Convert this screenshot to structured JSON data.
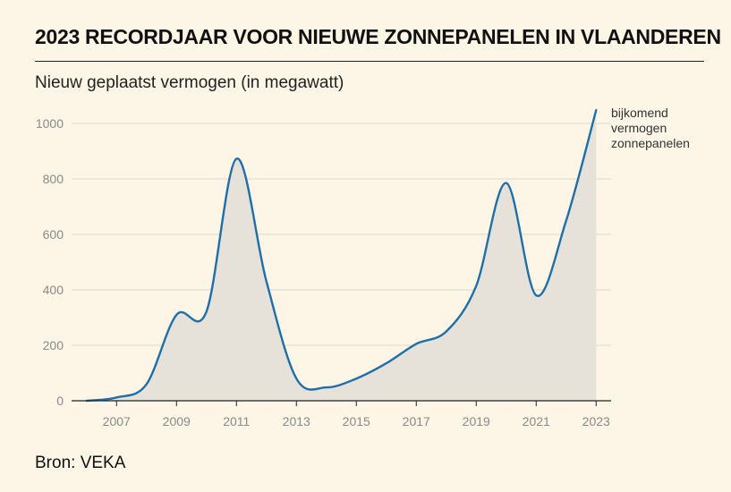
{
  "header": {
    "title": "2023 RECORDJAAR VOOR NIEUWE ZONNEPANELEN IN VLAANDEREN",
    "subtitle": "Nieuw geplaatst vermogen (in megawatt)"
  },
  "footer": {
    "source": "Bron: VEKA"
  },
  "chart_data": {
    "type": "area",
    "title": "2023 RECORDJAAR VOOR NIEUWE ZONNEPANELEN IN VLAANDEREN",
    "subtitle": "Nieuw geplaatst vermogen (in megawatt)",
    "xlabel": "",
    "ylabel": "",
    "x": [
      2006,
      2007,
      2008,
      2009,
      2010,
      2011,
      2012,
      2013,
      2014,
      2015,
      2016,
      2017,
      2018,
      2019,
      2020,
      2021,
      2022,
      2023
    ],
    "series": [
      {
        "values": [
          0,
          12,
          60,
          310,
          322,
          873,
          430,
          80,
          48,
          80,
          135,
          205,
          250,
          415,
          785,
          380,
          650,
          1048
        ]
      }
    ],
    "xticks": [
      "2007",
      "2009",
      "2011",
      "2013",
      "2015",
      "2017",
      "2019",
      "2021",
      "2023"
    ],
    "yticks": [
      "0",
      "200",
      "400",
      "600",
      "800",
      "1000"
    ],
    "xlim": [
      2005.5,
      2023.5
    ],
    "ylim": [
      0,
      1050
    ],
    "grid": true,
    "line_color": "#1f6fa8",
    "fill_color": "#e6e1d9",
    "grid_color": "#ddd8ce",
    "axis_color": "#222222",
    "annotation": {
      "lines": [
        "bijkomend",
        "vermogen",
        "zonnepanelen"
      ]
    }
  }
}
